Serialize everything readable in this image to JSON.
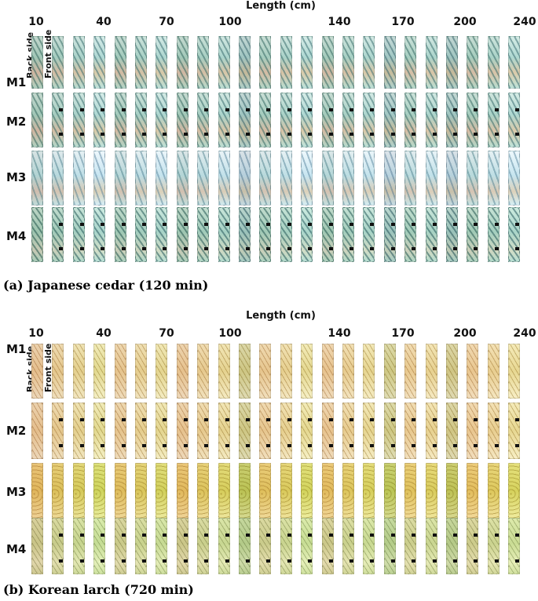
{
  "axis_title": "Length (cm)",
  "tick_labels": [
    "10",
    "40",
    "70",
    "100",
    "140",
    "170",
    "200",
    "240"
  ],
  "row_labels": [
    "M1",
    "M2",
    "M3",
    "M4"
  ],
  "side_labels": {
    "back": "Back side",
    "front": "Front side"
  },
  "panels": [
    {
      "id": "a",
      "caption": "(a) Japanese cedar (120 min)",
      "species": "cedar"
    },
    {
      "id": "b",
      "caption": "(b) Korean larch (720 min)",
      "species": "larch"
    }
  ]
}
